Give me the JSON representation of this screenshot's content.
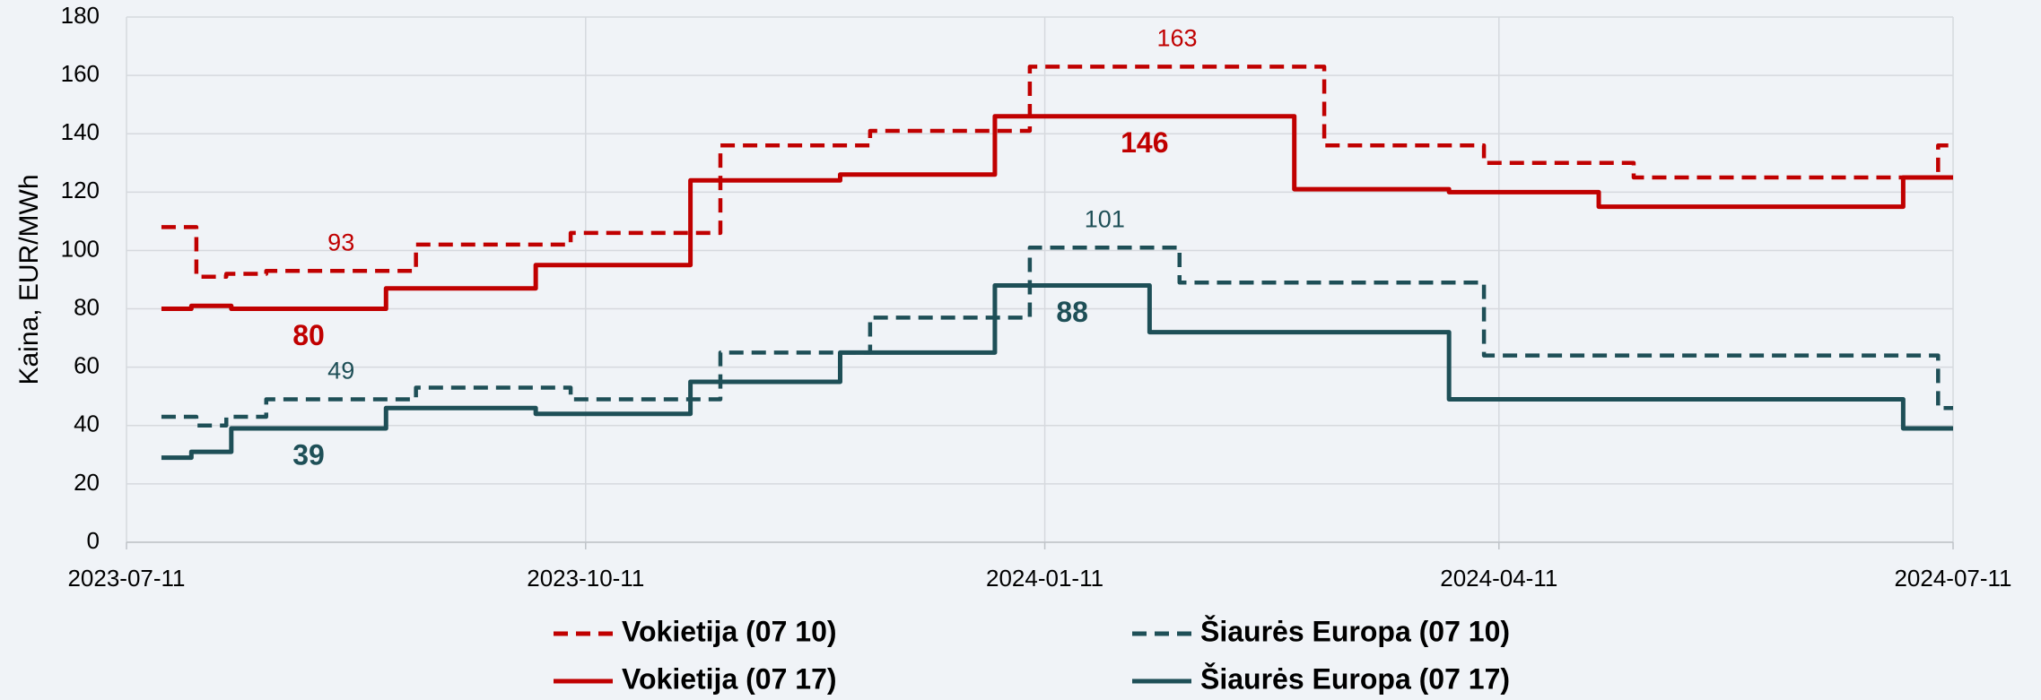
{
  "chart_data": {
    "type": "line",
    "step": true,
    "y_label": "Kaina, EUR/MWh",
    "xlim": [
      "2023-07-11",
      "2024-07-11"
    ],
    "xticks": [
      "2023-07-11",
      "2023-10-11",
      "2024-01-11",
      "2024-04-11",
      "2024-07-11"
    ],
    "ylim": [
      0,
      180
    ],
    "yticks": [
      0,
      20,
      40,
      60,
      80,
      100,
      120,
      140,
      160,
      180
    ],
    "grid": true,
    "legend": "bottom",
    "series": [
      {
        "name": "Vokietija (07 10)",
        "color": "#c00000",
        "dashed": true,
        "x": [
          "2023-07-18",
          "2023-07-25",
          "2023-07-31",
          "2023-08-08",
          "2023-09-07",
          "2023-10-08",
          "2023-11-07",
          "2023-12-07",
          "2024-01-08",
          "2024-03-07",
          "2024-04-08",
          "2024-05-08",
          "2024-07-08",
          "2024-07-11"
        ],
        "values": [
          108,
          91,
          92,
          93,
          102,
          106,
          136,
          141,
          163,
          136,
          130,
          125,
          136,
          136
        ],
        "value_labels": [
          null,
          null,
          null,
          "93",
          null,
          null,
          null,
          null,
          "163",
          null,
          null,
          null,
          null,
          null
        ]
      },
      {
        "name": "Vokietija (07 17)",
        "color": "#c00000",
        "dashed": false,
        "x": [
          "2023-07-18",
          "2023-07-24",
          "2023-08-01",
          "2023-09-01",
          "2023-10-01",
          "2023-11-01",
          "2023-12-01",
          "2024-01-01",
          "2024-03-01",
          "2024-04-01",
          "2024-05-01",
          "2024-07-01",
          "2024-07-11"
        ],
        "values": [
          80,
          81,
          80,
          87,
          95,
          124,
          126,
          146,
          121,
          120,
          115,
          125,
          125
        ],
        "value_labels": [
          null,
          null,
          "80",
          null,
          null,
          null,
          null,
          "146",
          null,
          null,
          null,
          null,
          null
        ]
      },
      {
        "name": "Šiaurės Europa (07 10)",
        "color": "#1e4f57",
        "dashed": true,
        "x": [
          "2023-07-18",
          "2023-07-25",
          "2023-07-31",
          "2023-08-08",
          "2023-09-07",
          "2023-10-08",
          "2023-11-07",
          "2023-12-07",
          "2024-01-08",
          "2024-02-07",
          "2024-04-08",
          "2024-07-08",
          "2024-07-11"
        ],
        "values": [
          43,
          40,
          43,
          49,
          53,
          49,
          65,
          77,
          101,
          89,
          64,
          46,
          46
        ],
        "value_labels": [
          null,
          null,
          null,
          "49",
          null,
          null,
          null,
          null,
          "101",
          null,
          null,
          null,
          null
        ]
      },
      {
        "name": "Šiaurės Europa (07 17)",
        "color": "#1e4f57",
        "dashed": false,
        "x": [
          "2023-07-18",
          "2023-07-24",
          "2023-08-01",
          "2023-09-01",
          "2023-10-01",
          "2023-11-01",
          "2023-12-01",
          "2024-01-01",
          "2024-02-01",
          "2024-04-01",
          "2024-07-01",
          "2024-07-11"
        ],
        "values": [
          29,
          31,
          39,
          46,
          44,
          55,
          65,
          88,
          72,
          49,
          39,
          39
        ],
        "value_labels": [
          null,
          null,
          "39",
          null,
          null,
          null,
          null,
          "88",
          null,
          null,
          null,
          null
        ]
      }
    ]
  }
}
